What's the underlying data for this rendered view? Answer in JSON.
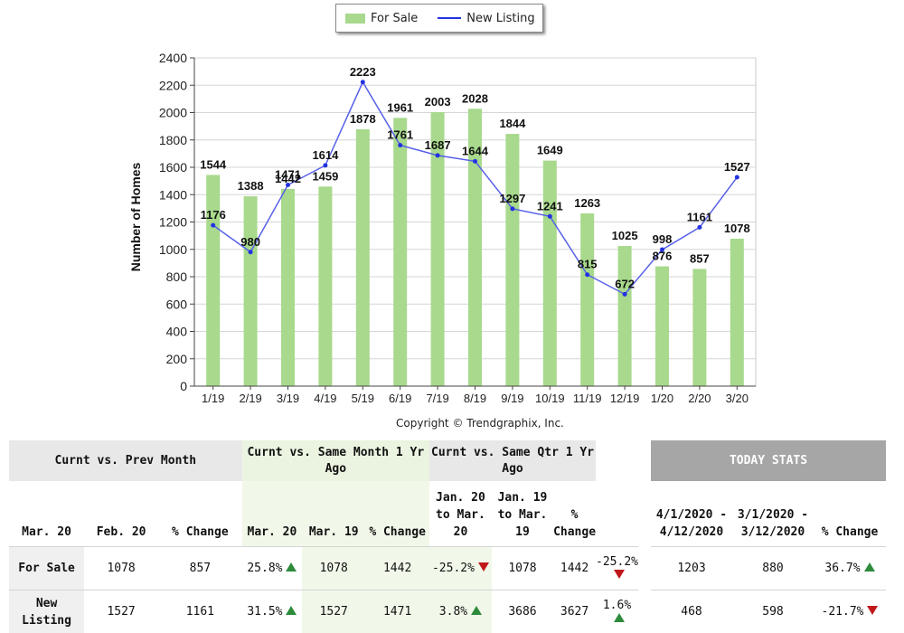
{
  "colors": {
    "bar": "#a8d98c",
    "line": "#2232e0",
    "up": "#2e8b3c",
    "down": "#c0181a"
  },
  "legend": {
    "for_sale": "For Sale",
    "new_listing": "New Listing"
  },
  "copyright": "Copyright © Trendgraphix, Inc.",
  "chart_data": {
    "type": "bar",
    "ylabel": "Number of Homes",
    "ylim": [
      0,
      2400
    ],
    "yticks": [
      0,
      200,
      400,
      600,
      800,
      1000,
      1200,
      1400,
      1600,
      1800,
      2000,
      2200,
      2400
    ],
    "grid": true,
    "legend_position": "top",
    "categories": [
      "1/19",
      "2/19",
      "3/19",
      "4/19",
      "5/19",
      "6/19",
      "7/19",
      "8/19",
      "9/19",
      "10/19",
      "11/19",
      "12/19",
      "1/20",
      "2/20",
      "3/20"
    ],
    "series": [
      {
        "name": "For Sale",
        "type": "bar",
        "values": [
          1544,
          1388,
          1442,
          1459,
          1878,
          1961,
          2003,
          2028,
          1844,
          1649,
          1263,
          1025,
          876,
          857,
          1078
        ]
      },
      {
        "name": "New Listing",
        "type": "line",
        "values": [
          1176,
          980,
          1471,
          1614,
          2223,
          1761,
          1687,
          1644,
          1297,
          1241,
          815,
          672,
          998,
          1161,
          1527
        ]
      }
    ]
  },
  "stats": {
    "groups": {
      "prev_month": "Curnt vs. Prev Month",
      "same_month": "Curnt vs. Same Month 1 Yr Ago",
      "same_qtr": "Curnt vs. Same Qtr 1 Yr Ago",
      "today": "TODAY STATS"
    },
    "headers": {
      "pm_a": "Mar. 20",
      "pm_b": "Feb. 20",
      "pm_c": "% Change",
      "sm_a": "Mar. 20",
      "sm_b": "Mar. 19",
      "sm_c": "% Change",
      "sq_a": "Jan. 20 to Mar. 20",
      "sq_b": "Jan. 19 to Mar. 19",
      "sq_c": "% Change",
      "td_a": "4/1/2020 - 4/12/2020",
      "td_b": "3/1/2020 - 3/12/2020",
      "td_c": "% Change"
    },
    "rows": [
      {
        "label": "For Sale",
        "pm": [
          "1078",
          "857",
          "25.8%"
        ],
        "pm_dir": "up",
        "sm": [
          "1078",
          "1442",
          "-25.2%"
        ],
        "sm_dir": "down",
        "sq": [
          "1078",
          "1442",
          "-25.2%"
        ],
        "sq_dir": "down",
        "td": [
          "1203",
          "880",
          "36.7%"
        ],
        "td_dir": "up"
      },
      {
        "label": "New Listing",
        "pm": [
          "1527",
          "1161",
          "31.5%"
        ],
        "pm_dir": "up",
        "sm": [
          "1527",
          "1471",
          "3.8%"
        ],
        "sm_dir": "up",
        "sq": [
          "3686",
          "3627",
          "1.6%"
        ],
        "sq_dir": "up",
        "td": [
          "468",
          "598",
          "-21.7%"
        ],
        "td_dir": "down"
      }
    ]
  }
}
